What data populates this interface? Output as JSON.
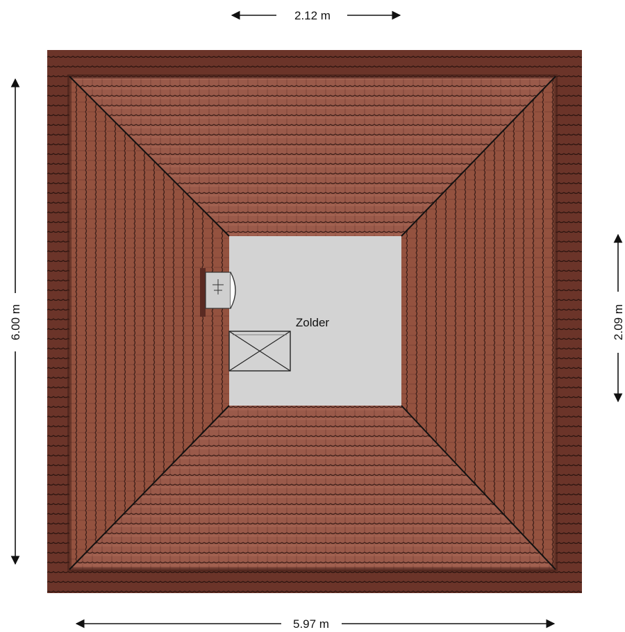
{
  "dimensions": {
    "top": "2.12 m",
    "bottom": "5.97 m",
    "left": "6.00 m",
    "right": "2.09 m"
  },
  "rooms": [
    {
      "label": "Zolder"
    }
  ],
  "colors": {
    "roof_tile": "#9a5a4a",
    "roof_tile_dark": "#5a2f26",
    "roof_edge": "#6e3a30",
    "room_fill": "#d3d3d3",
    "line": "#111111"
  }
}
